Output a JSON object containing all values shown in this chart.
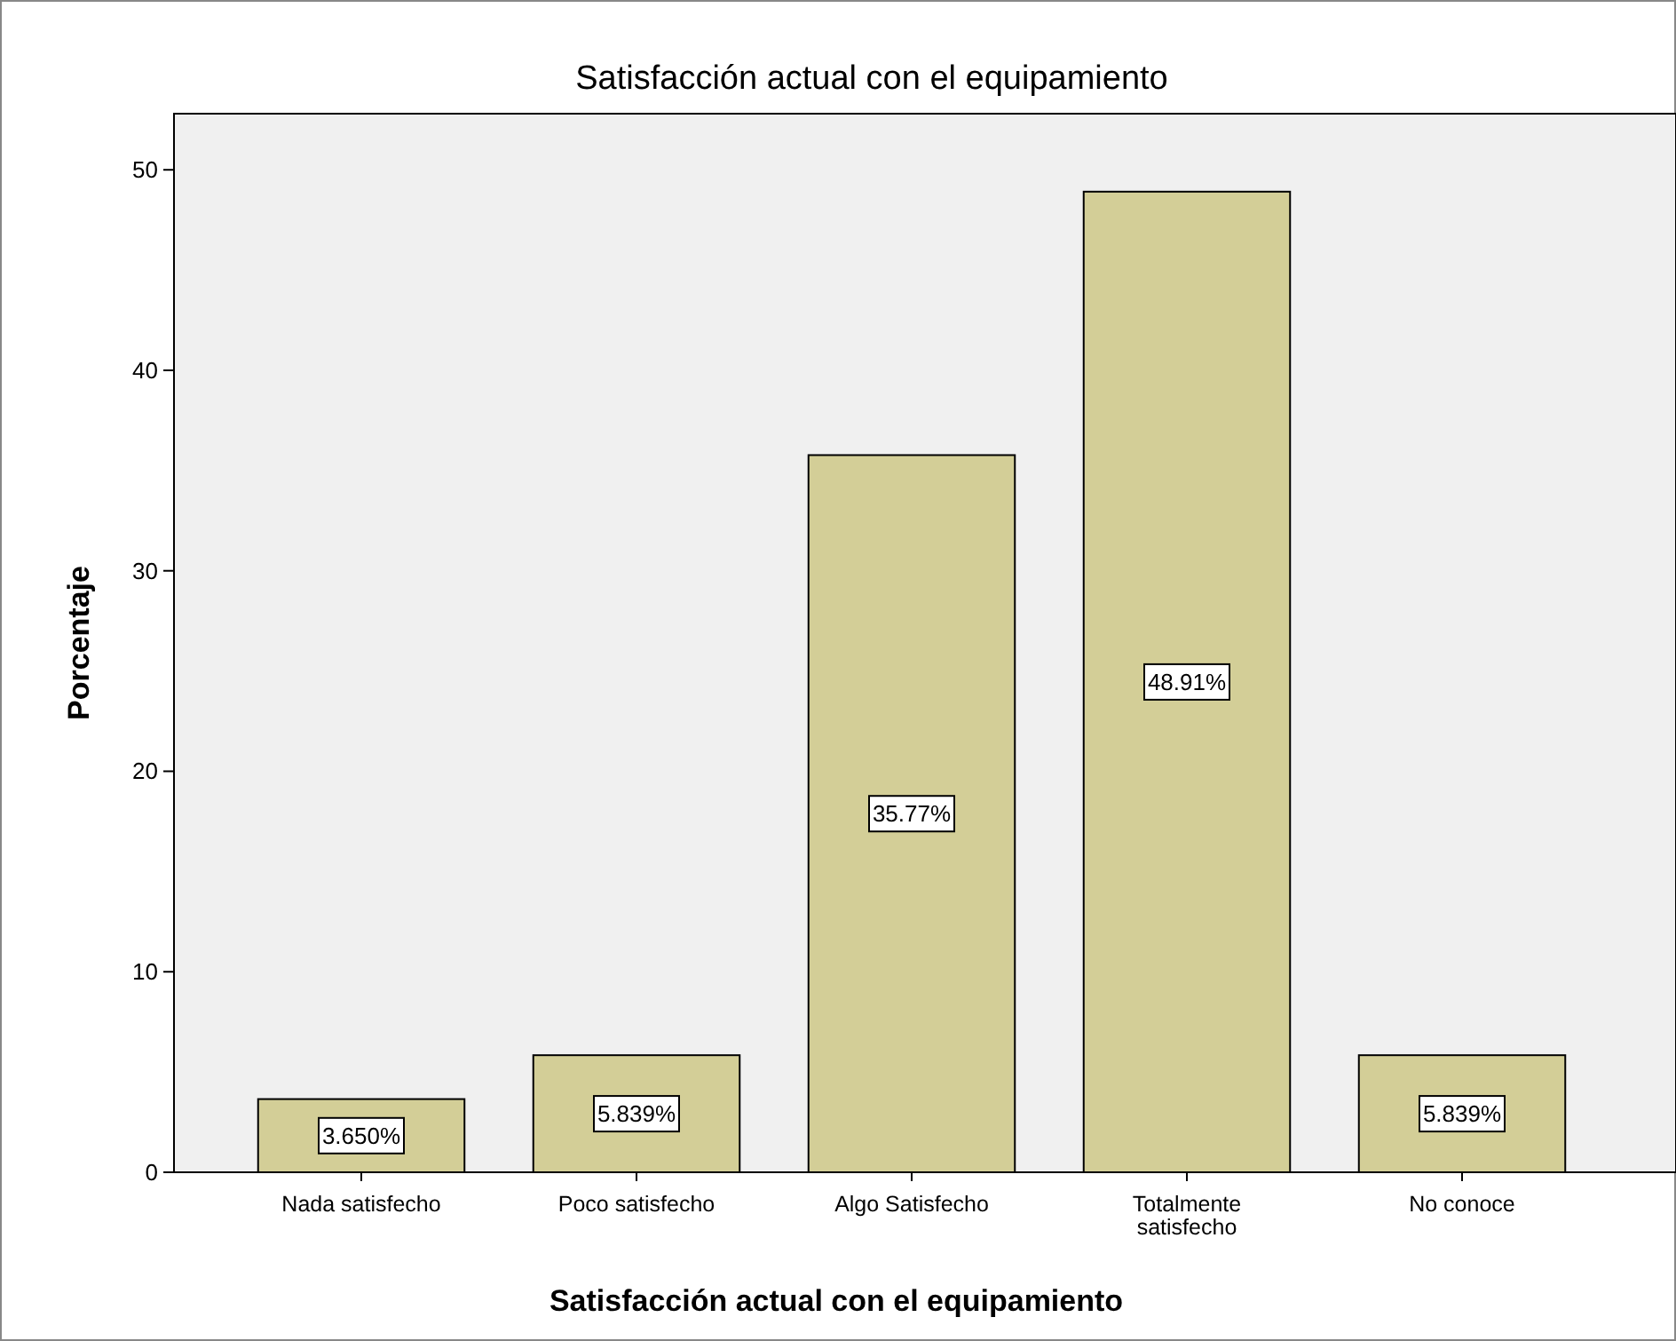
{
  "chart_data": {
    "type": "bar",
    "title": "Satisfacción actual con el equipamiento",
    "xlabel": "Satisfacción actual con el equipamiento",
    "ylabel": "Porcentaje",
    "categories": [
      "Nada satisfecho",
      "Poco satisfecho",
      "Algo Satisfecho",
      "Totalmente satisfecho",
      "No conoce"
    ],
    "values": [
      3.65,
      5.839,
      35.77,
      48.91,
      5.839
    ],
    "value_labels": [
      "3.650%",
      "5.839%",
      "35.77%",
      "48.91%",
      "5.839%"
    ],
    "color": "#d3ce97",
    "ylim": [
      0,
      52.8
    ],
    "yticks": [
      0,
      10,
      20,
      30,
      40,
      50
    ],
    "grid": false
  }
}
